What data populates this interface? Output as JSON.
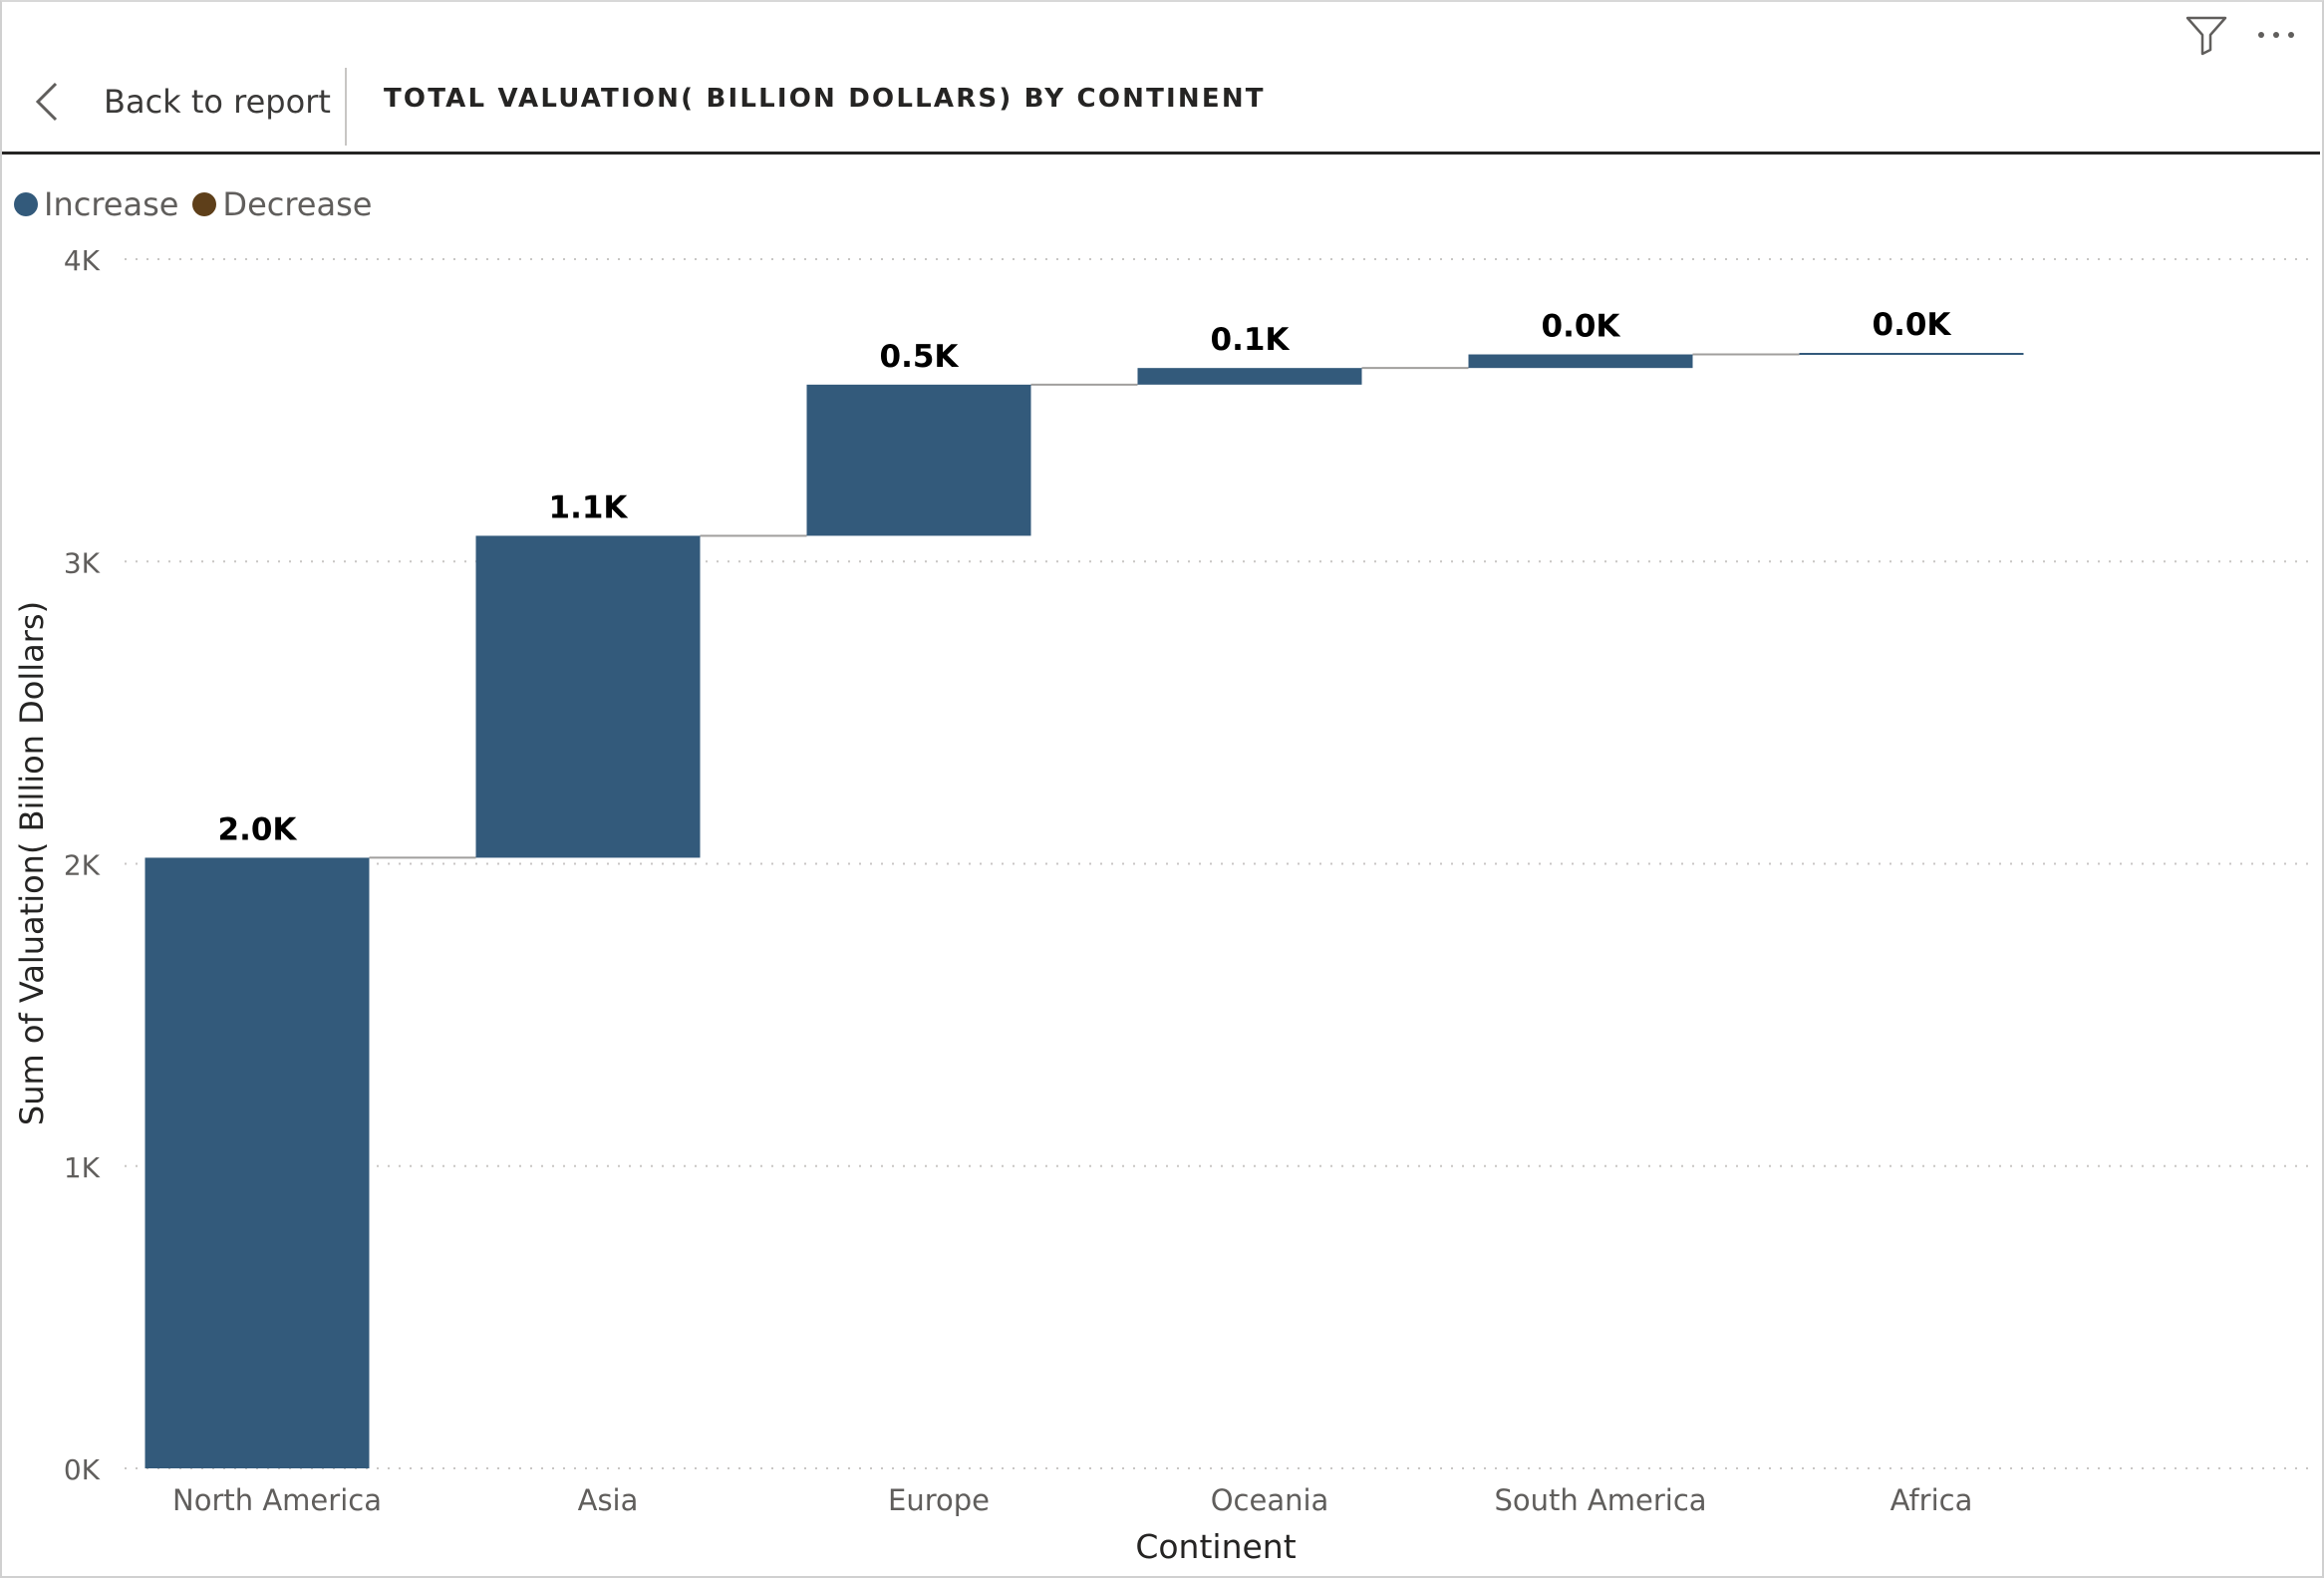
{
  "header": {
    "back_label": "Back to report",
    "title": "TOTAL VALUATION( BILLION DOLLARS) BY CONTINENT"
  },
  "icons": {
    "back": "chevron-left-icon",
    "filter": "filter-icon",
    "more": "more-options-icon"
  },
  "legend": [
    {
      "label": "Increase",
      "color": "#335a7b"
    },
    {
      "label": "Decrease",
      "color": "#5e3f1a"
    }
  ],
  "chart_data": {
    "type": "waterfall",
    "categories": [
      "North America",
      "Asia",
      "Europe",
      "Oceania",
      "South America",
      "Africa"
    ],
    "values": [
      2020,
      1065,
      500,
      55,
      45,
      5
    ],
    "data_labels": [
      "2.0K",
      "1.1K",
      "0.5K",
      "0.1K",
      "0.0K",
      "0.0K"
    ],
    "xlabel": "Continent",
    "ylabel": "Sum of Valuation( Billion Dollars)",
    "ylim": [
      0,
      4000
    ],
    "yticks": [
      {
        "value": 0,
        "label": "0K"
      },
      {
        "value": 1000,
        "label": "1K"
      },
      {
        "value": 2000,
        "label": "2K"
      },
      {
        "value": 3000,
        "label": "3K"
      },
      {
        "value": 4000,
        "label": "4K"
      }
    ],
    "grid": true,
    "legend_position": "top-left",
    "increase_color": "#335a7b",
    "decrease_color": "#5e3f1a"
  }
}
